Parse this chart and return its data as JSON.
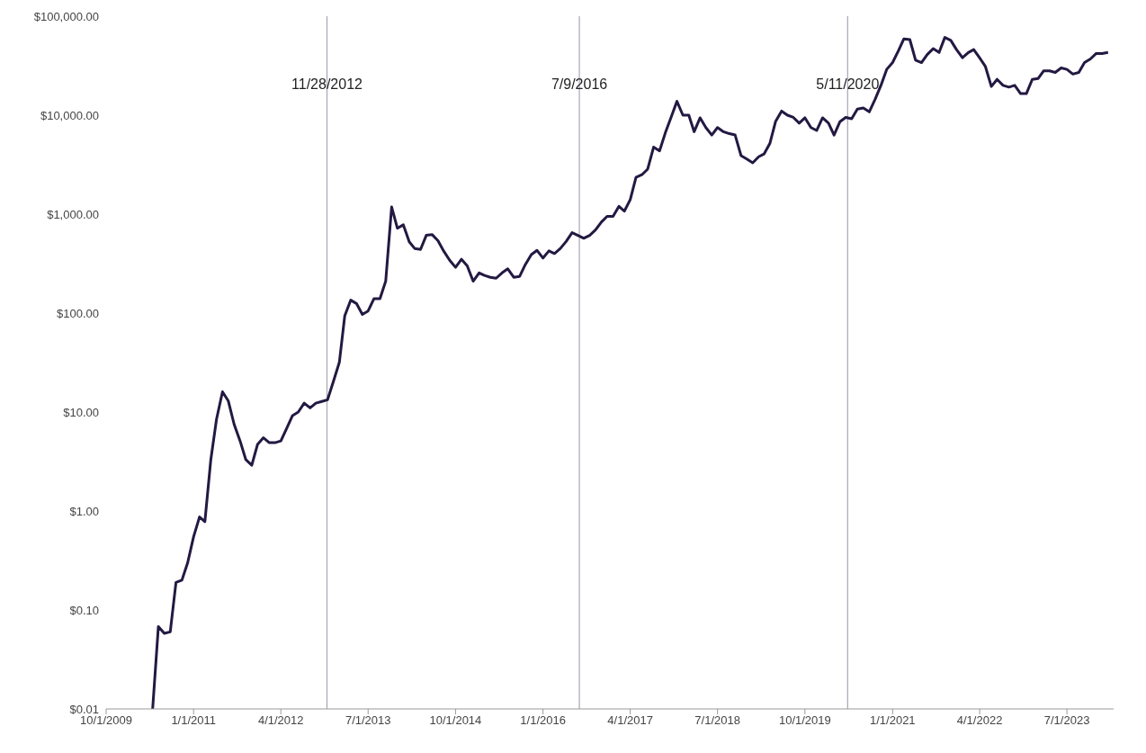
{
  "chart_data": {
    "type": "line",
    "x": [
      "2010-06",
      "2010-07",
      "2010-08",
      "2010-09",
      "2010-10",
      "2010-11",
      "2010-12",
      "2011-01",
      "2011-02",
      "2011-03",
      "2011-04",
      "2011-05",
      "2011-06",
      "2011-07",
      "2011-08",
      "2011-09",
      "2011-10",
      "2011-11",
      "2011-12",
      "2012-01",
      "2012-02",
      "2012-03",
      "2012-04",
      "2012-05",
      "2012-06",
      "2012-07",
      "2012-08",
      "2012-09",
      "2012-10",
      "2012-11",
      "2012-12",
      "2013-01",
      "2013-02",
      "2013-03",
      "2013-04",
      "2013-05",
      "2013-06",
      "2013-07",
      "2013-08",
      "2013-09",
      "2013-10",
      "2013-11",
      "2013-12",
      "2014-01",
      "2014-02",
      "2014-03",
      "2014-04",
      "2014-05",
      "2014-06",
      "2014-07",
      "2014-08",
      "2014-09",
      "2014-10",
      "2014-11",
      "2014-12",
      "2015-01",
      "2015-02",
      "2015-03",
      "2015-04",
      "2015-05",
      "2015-06",
      "2015-07",
      "2015-08",
      "2015-09",
      "2015-10",
      "2015-11",
      "2015-12",
      "2016-01",
      "2016-02",
      "2016-03",
      "2016-04",
      "2016-05",
      "2016-06",
      "2016-07",
      "2016-08",
      "2016-09",
      "2016-10",
      "2016-11",
      "2016-12",
      "2017-01",
      "2017-02",
      "2017-03",
      "2017-04",
      "2017-05",
      "2017-06",
      "2017-07",
      "2017-08",
      "2017-09",
      "2017-10",
      "2017-11",
      "2017-12",
      "2018-01",
      "2018-02",
      "2018-03",
      "2018-04",
      "2018-05",
      "2018-06",
      "2018-07",
      "2018-08",
      "2018-09",
      "2018-10",
      "2018-11",
      "2018-12",
      "2019-01",
      "2019-02",
      "2019-03",
      "2019-04",
      "2019-05",
      "2019-06",
      "2019-07",
      "2019-08",
      "2019-09",
      "2019-10",
      "2019-11",
      "2019-12",
      "2020-01",
      "2020-02",
      "2020-03",
      "2020-04",
      "2020-05",
      "2020-06",
      "2020-07",
      "2020-08",
      "2020-09",
      "2020-10",
      "2020-11",
      "2020-12",
      "2021-01",
      "2021-02",
      "2021-03",
      "2021-04",
      "2021-05",
      "2021-06",
      "2021-07",
      "2021-08",
      "2021-09",
      "2021-10",
      "2021-11",
      "2021-12",
      "2022-01",
      "2022-02",
      "2022-03",
      "2022-04",
      "2022-05",
      "2022-06",
      "2022-07",
      "2022-08",
      "2022-09",
      "2022-10",
      "2022-11",
      "2022-12",
      "2023-01",
      "2023-02",
      "2023-03",
      "2023-04",
      "2023-05",
      "2023-06",
      "2023-07",
      "2023-08",
      "2023-09",
      "2023-10",
      "2023-11",
      "2023-12",
      "2024-01",
      "2024-02"
    ],
    "series": [
      {
        "color": "#231942",
        "values": [
          0.01,
          0.068,
          0.058,
          0.06,
          0.19,
          0.2,
          0.3,
          0.55,
          0.87,
          0.78,
          3.3,
          8.5,
          16,
          13,
          7.5,
          5.1,
          3.3,
          2.9,
          4.7,
          5.5,
          4.9,
          4.9,
          5.1,
          6.8,
          9.2,
          10,
          12.3,
          11,
          12.3,
          12.8,
          13.3,
          20.5,
          32,
          94,
          135,
          125,
          97,
          105,
          140,
          140,
          210,
          1180,
          720,
          780,
          525,
          450,
          440,
          610,
          620,
          540,
          420,
          340,
          290,
          350,
          300,
          210,
          255,
          240,
          230,
          225,
          255,
          280,
          230,
          235,
          310,
          390,
          430,
          360,
          425,
          400,
          450,
          530,
          650,
          610,
          570,
          610,
          690,
          830,
          950,
          950,
          1200,
          1070,
          1400,
          2350,
          2500,
          2850,
          4750,
          4350,
          6600,
          9600,
          13800,
          10000,
          10000,
          6800,
          9400,
          7500,
          6300,
          7500,
          6800,
          6500,
          6300,
          3900,
          3600,
          3300,
          3800,
          4050,
          5200,
          8700,
          11000,
          10000,
          9500,
          8300,
          9400,
          7500,
          7000,
          9400,
          8300,
          6300,
          8600,
          9500,
          9200,
          11500,
          11800,
          10800,
          14400,
          20000,
          29000,
          34000,
          45000,
          59000,
          58000,
          36000,
          34000,
          41000,
          47000,
          43000,
          61000,
          57000,
          46000,
          38000,
          43000,
          46000,
          37800,
          31000,
          19500,
          23000,
          20000,
          19200,
          20000,
          16500,
          16500,
          23000,
          23500,
          28000,
          28000,
          27000,
          30000,
          29000,
          26000,
          27000,
          34000,
          37000,
          42000,
          42000,
          43000
        ]
      }
    ],
    "xlim": [
      "2009-10-01",
      "2024-03-01"
    ],
    "xticks": [
      {
        "value": "2009-10-01",
        "label": "10/1/2009"
      },
      {
        "value": "2011-01-01",
        "label": "1/1/2011"
      },
      {
        "value": "2012-04-01",
        "label": "4/1/2012"
      },
      {
        "value": "2013-07-01",
        "label": "7/1/2013"
      },
      {
        "value": "2014-10-01",
        "label": "10/1/2014"
      },
      {
        "value": "2016-01-01",
        "label": "1/1/2016"
      },
      {
        "value": "2017-04-01",
        "label": "4/1/2017"
      },
      {
        "value": "2018-07-01",
        "label": "7/1/2018"
      },
      {
        "value": "2019-10-01",
        "label": "10/1/2019"
      },
      {
        "value": "2021-01-01",
        "label": "1/1/2021"
      },
      {
        "value": "2022-04-01",
        "label": "4/1/2022"
      },
      {
        "value": "2023-07-01",
        "label": "7/1/2023"
      }
    ],
    "ylim": [
      0.01,
      100000
    ],
    "log": "y",
    "yticks": [
      {
        "value": 0.01,
        "label": "$0.01"
      },
      {
        "value": 0.1,
        "label": "$0.10"
      },
      {
        "value": 1,
        "label": "$1.00"
      },
      {
        "value": 10,
        "label": "$10.00"
      },
      {
        "value": 100,
        "label": "$100.00"
      },
      {
        "value": 1000,
        "label": "$1,000.00"
      },
      {
        "value": 10000,
        "label": "$10,000.00"
      },
      {
        "value": 100000,
        "label": "$100,000.00"
      }
    ],
    "ref_lines": [
      {
        "axis": "x",
        "value": "2012-11-28",
        "label": "11/28/2012",
        "color": "#a8a6b4"
      },
      {
        "axis": "x",
        "value": "2016-07-09",
        "label": "7/9/2016",
        "color": "#a8a6b4"
      },
      {
        "axis": "x",
        "value": "2020-05-11",
        "label": "5/11/2020",
        "color": "#a8a6b4"
      }
    ],
    "grid": false,
    "legend": false,
    "marker": "none",
    "line_style": "solid"
  }
}
